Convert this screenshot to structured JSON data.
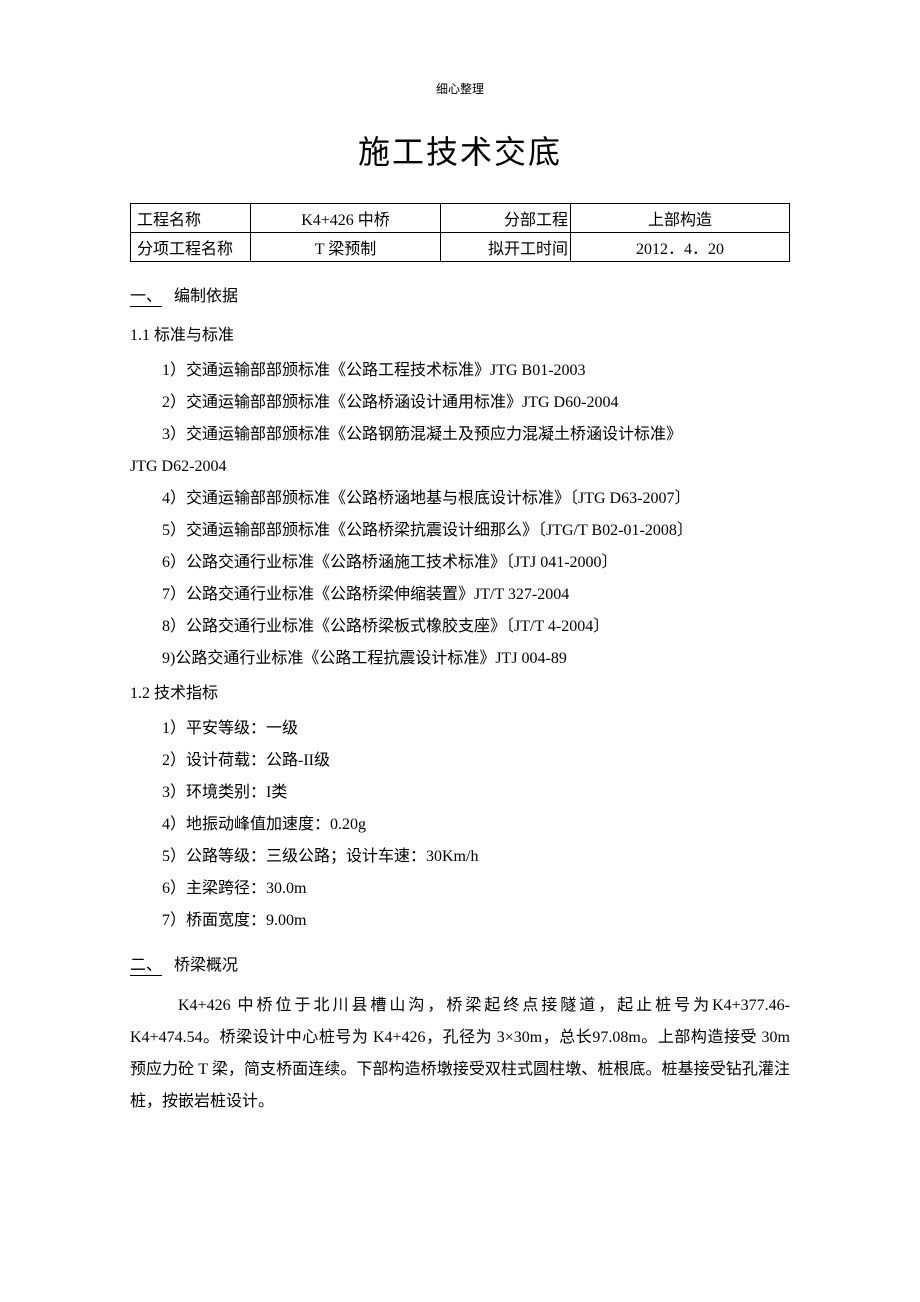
{
  "header_small": "细心整理",
  "main_title": "施工技术交底",
  "table": {
    "row1": {
      "label1": "工程名称",
      "value1": "K4+426 中桥",
      "label2": "分部工程",
      "value2": "上部构造"
    },
    "row2": {
      "label1": "分项工程名称",
      "value1": "T 梁预制",
      "label2": "拟开工时间",
      "value2": "2012．4．20"
    }
  },
  "section1": {
    "number": "一、",
    "title": "编制依据",
    "sub1_title": "1.1 标准与标准",
    "items1": {
      "i1": "1）交通运输部部颁标准《公路工程技术标准》JTG B01-2003",
      "i2": "2）交通运输部部颁标准《公路桥涵设计通用标准》JTG D60-2004",
      "i3": "3）交通运输部部颁标准《公路钢筋混凝土及预应力混凝土桥涵设计标准》",
      "i3b": "JTG D62-2004",
      "i4": "4）交通运输部部颁标准《公路桥涵地基与根底设计标准》〔JTG D63-2007〕",
      "i5": "5）交通运输部部颁标准《公路桥梁抗震设计细那么》〔JTG/T B02-01-2008〕",
      "i6": "6）公路交通行业标准《公路桥涵施工技术标准》〔JTJ 041-2000〕",
      "i7": "7）公路交通行业标准《公路桥梁伸缩装置》JT/T 327-2004",
      "i8": "8）公路交通行业标准《公路桥梁板式橡胶支座》〔JT/T 4-2004〕",
      "i9": "9)公路交通行业标准《公路工程抗震设计标准》JTJ 004-89"
    },
    "sub2_title": "1.2 技术指标",
    "items2": {
      "i1": "1）平安等级：一级",
      "i2": "2）设计荷载：公路-II级",
      "i3": "3）环境类别：I类",
      "i4": "4）地振动峰值加速度：0.20g",
      "i5": "5）公路等级：三级公路；设计车速：30Km/h",
      "i6": "6）主梁跨径：30.0m",
      "i7": "7）桥面宽度：9.00m"
    }
  },
  "section2": {
    "number": "二、",
    "title": "桥梁概况",
    "paragraph": "K4+426 中桥位于北川县槽山沟，桥梁起终点接隧道，起止桩号为K4+377.46-K4+474.54。桥梁设计中心桩号为 K4+426，孔径为 3×30m，总长97.08m。上部构造接受 30m 预应力砼 T 梁，简支桥面连续。下部构造桥墩接受双柱式圆柱墩、桩根底。桩基接受钻孔灌注桩，按嵌岩桩设计。"
  },
  "colors": {
    "text": "#000000",
    "background": "#ffffff",
    "border": "#000000"
  },
  "typography": {
    "body_fontsize": 16,
    "title_fontsize": 32,
    "header_fontsize": 12,
    "font_family": "SimSun"
  }
}
